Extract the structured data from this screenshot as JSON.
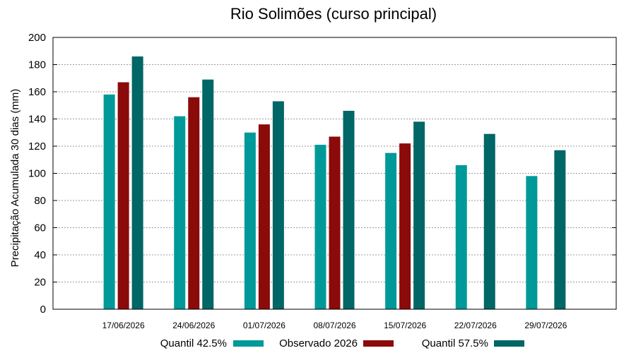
{
  "chart_data": {
    "type": "bar",
    "title": "Rio Solimões (curso principal)",
    "xlabel": "",
    "ylabel": "Precipitação Acumulada 30 dias (mm)",
    "ylim": [
      0,
      200
    ],
    "yticks": [
      0,
      20,
      40,
      60,
      80,
      100,
      120,
      140,
      160,
      180,
      200
    ],
    "grid": true,
    "legend_position": "bottom",
    "categories": [
      "17/06/2026",
      "24/06/2026",
      "01/07/2026",
      "08/07/2026",
      "15/07/2026",
      "22/07/2026",
      "29/07/2026"
    ],
    "series": [
      {
        "name": "Quantil 42.5%",
        "color": "#009999",
        "values": [
          158,
          142,
          130,
          121,
          115,
          106,
          98
        ]
      },
      {
        "name": "Observado 2026",
        "color": "#8b0a0a",
        "values": [
          167,
          156,
          136,
          127,
          122,
          null,
          null
        ]
      },
      {
        "name": "Quantil 57.5%",
        "color": "#006666",
        "values": [
          186,
          169,
          153,
          146,
          138,
          129,
          117
        ]
      }
    ]
  }
}
